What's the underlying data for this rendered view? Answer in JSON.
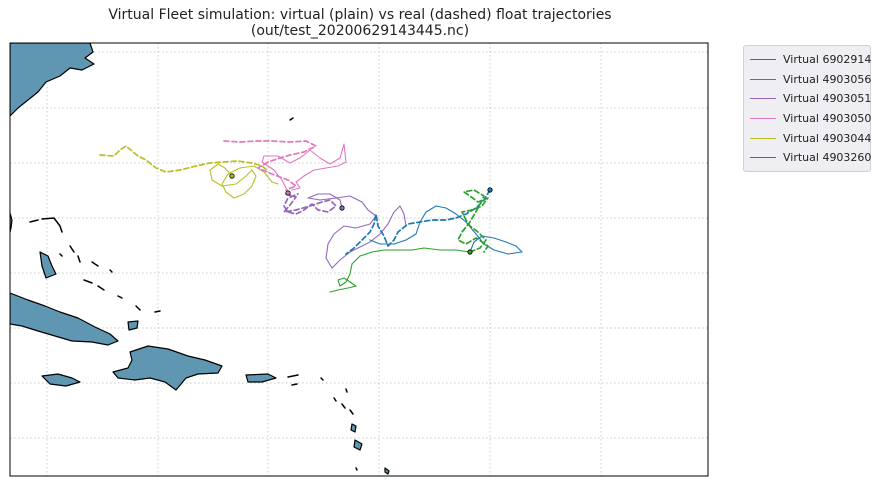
{
  "title": {
    "line1": "Virtual Fleet simulation: virtual (plain) vs real (dashed) float trajectories",
    "line2": "(out/test_20200629143445.nc)"
  },
  "map": {
    "land_color": "#5f97b3",
    "coast_color": "#000000",
    "grid": "dotted",
    "background": "#ffffff"
  },
  "legend": {
    "entries": [
      {
        "label": "Virtual 6902914",
        "color": "#1f77b4"
      },
      {
        "label": "Virtual 4903056",
        "color": "#2ca02c"
      },
      {
        "label": "Virtual 4903051",
        "color": "#9467bd"
      },
      {
        "label": "Virtual 4903050",
        "color": "#e377c2"
      },
      {
        "label": "Virtual 4903044",
        "color": "#bcbd22"
      },
      {
        "label": "Virtual 4903260",
        "color": "#1f77b4"
      }
    ]
  },
  "chart_data": {
    "type": "map",
    "title": "Virtual Fleet simulation: virtual (plain) vs real (dashed) float trajectories",
    "subtitle": "(out/test_20200629143445.nc)",
    "grid": true,
    "legend_position": "outside-top-right",
    "series": [
      {
        "name": "Virtual 6902914",
        "color": "#1f77b4",
        "line": "solid"
      },
      {
        "name": "Virtual 4903056",
        "color": "#2ca02c",
        "line": "solid"
      },
      {
        "name": "Virtual 4903051",
        "color": "#9467bd",
        "line": "solid"
      },
      {
        "name": "Virtual 4903050",
        "color": "#e377c2",
        "line": "solid"
      },
      {
        "name": "Virtual 4903044",
        "color": "#bcbd22",
        "line": "solid"
      },
      {
        "name": "Virtual 4903260",
        "color": "#1f77b4",
        "line": "solid"
      }
    ]
  }
}
